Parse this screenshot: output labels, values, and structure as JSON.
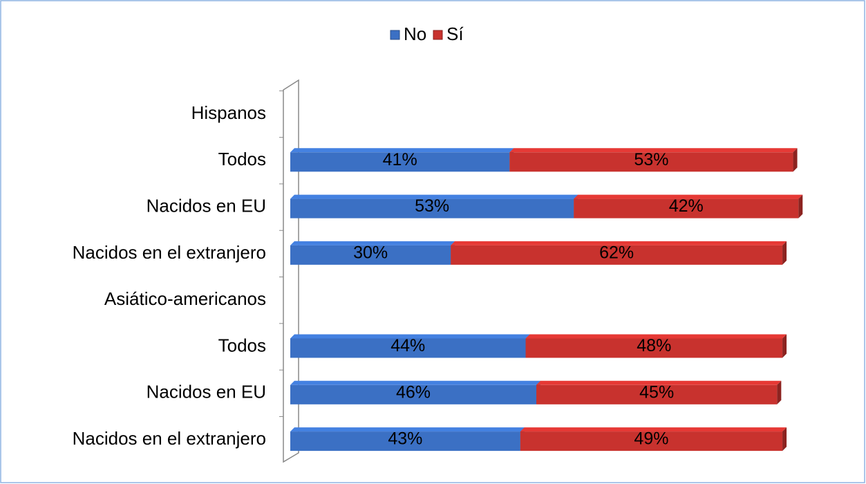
{
  "chart_data": {
    "type": "stacked-bar-horizontal",
    "categories": [
      "Hispanos",
      "Todos",
      "Nacidos en EU",
      "Nacidos en el extranjero",
      "Asiático-americanos",
      "Todos",
      "Nacidos en EU",
      "Nacidos en el extranjero"
    ],
    "series": [
      {
        "name": "No",
        "color": "#3b70c4",
        "values": [
          null,
          41,
          53,
          30,
          null,
          44,
          46,
          43
        ],
        "value_labels": [
          null,
          "41%",
          "53%",
          "30%",
          null,
          "44%",
          "46%",
          "43%"
        ]
      },
      {
        "name": "Sí",
        "color": "#c8322e",
        "values": [
          null,
          53,
          42,
          62,
          null,
          48,
          45,
          49
        ],
        "value_labels": [
          null,
          "53%",
          "42%",
          "62%",
          null,
          "48%",
          "45%",
          "49%"
        ]
      }
    ],
    "legend": "top"
  }
}
